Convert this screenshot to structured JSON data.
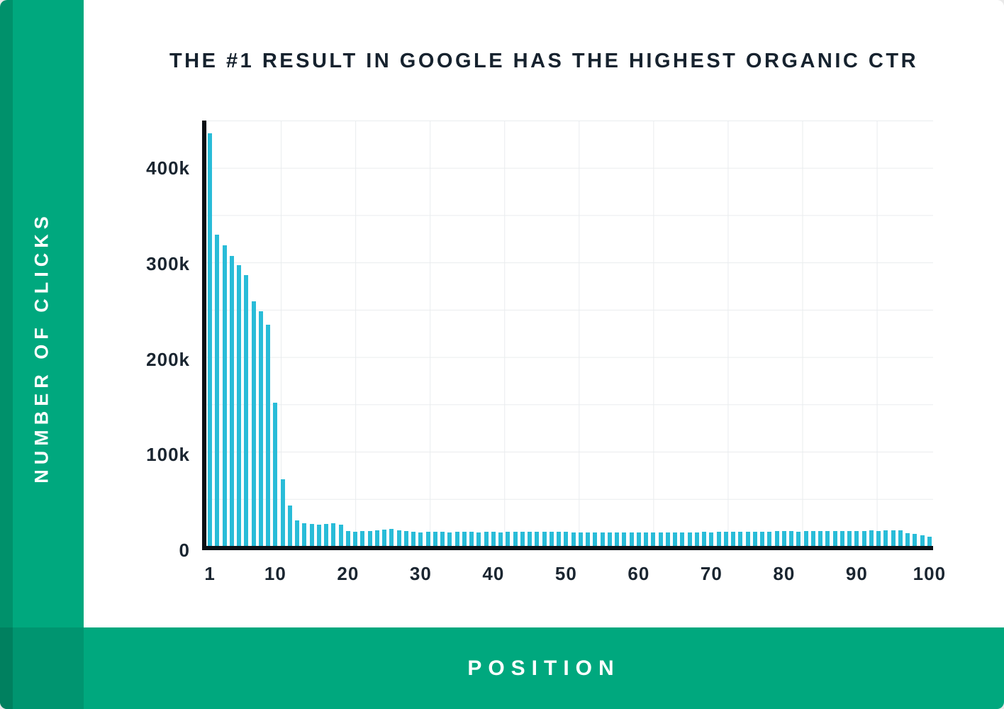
{
  "title": "THE #1 RESULT IN GOOGLE HAS THE HIGHEST ORGANIC CTR",
  "y_axis_title": "NUMBER OF CLICKS",
  "x_axis_title": "POSITION",
  "colors": {
    "green": "#00A87E",
    "green_dark": "#00916B",
    "bar": "#29BCD8",
    "title_text": "#16222E",
    "axis": "#0B1015",
    "grid": "#E9ECEE"
  },
  "chart_data": {
    "type": "bar",
    "title": "THE #1 RESULT IN GOOGLE HAS THE HIGHEST ORGANIC CTR",
    "xlabel": "POSITION",
    "ylabel": "NUMBER OF CLICKS",
    "ylim": [
      0,
      450000
    ],
    "grid": true,
    "y_ticks": [
      {
        "label": "0",
        "value": 0
      },
      {
        "label": "100k",
        "value": 100000
      },
      {
        "label": "200k",
        "value": 200000
      },
      {
        "label": "300k",
        "value": 300000
      },
      {
        "label": "400k",
        "value": 400000
      }
    ],
    "x_ticks": [
      1,
      10,
      20,
      30,
      40,
      50,
      60,
      70,
      80,
      90,
      100
    ],
    "categories_note": "x = Google organic position 1..100",
    "values": [
      432000,
      326000,
      315000,
      304000,
      294000,
      284000,
      256000,
      246000,
      232000,
      150000,
      70000,
      42000,
      27000,
      24000,
      23000,
      22000,
      23000,
      24000,
      22000,
      16000,
      15000,
      15500,
      16000,
      16500,
      17000,
      17500,
      16500,
      15500,
      15000,
      14500,
      14800,
      15000,
      14600,
      14500,
      14800,
      15000,
      14700,
      14500,
      14800,
      15000,
      14500,
      14800,
      15000,
      14600,
      14800,
      15200,
      14900,
      14600,
      14800,
      15000,
      13800,
      14000,
      14200,
      13900,
      14000,
      14200,
      14000,
      13800,
      14000,
      14200,
      13900,
      14100,
      14000,
      14200,
      14400,
      14300,
      14500,
      14400,
      14600,
      14500,
      14700,
      14800,
      14600,
      14800,
      15000,
      15200,
      15000,
      15200,
      15400,
      15600,
      15400,
      15200,
      15400,
      15600,
      15500,
      15700,
      15600,
      15800,
      15700,
      15900,
      16000,
      16200,
      16000,
      16200,
      16400,
      16200,
      13500,
      12500,
      11000,
      9500
    ]
  }
}
